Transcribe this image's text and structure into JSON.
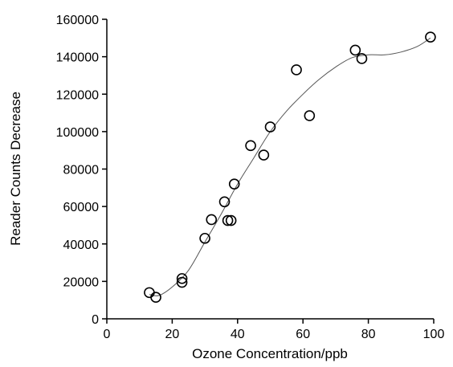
{
  "chart_data": {
    "type": "scatter",
    "title": "",
    "xlabel": "Ozone Concentration/ppb",
    "ylabel": "Reader Counts Decrease",
    "xlim": [
      0,
      100
    ],
    "ylim": [
      0,
      160000
    ],
    "xticks": [
      0,
      20,
      40,
      60,
      80,
      100
    ],
    "yticks": [
      0,
      20000,
      40000,
      60000,
      80000,
      100000,
      120000,
      140000,
      160000
    ],
    "grid": false,
    "legend": "none",
    "series": [
      {
        "points": [
          {
            "x": 13,
            "y": 14000
          },
          {
            "x": 15,
            "y": 11500
          },
          {
            "x": 23,
            "y": 19500
          },
          {
            "x": 23,
            "y": 21500
          },
          {
            "x": 30,
            "y": 43000
          },
          {
            "x": 32,
            "y": 53000
          },
          {
            "x": 36,
            "y": 62500
          },
          {
            "x": 37,
            "y": 52500
          },
          {
            "x": 38,
            "y": 52500
          },
          {
            "x": 39,
            "y": 72000
          },
          {
            "x": 44,
            "y": 92500
          },
          {
            "x": 48,
            "y": 87500
          },
          {
            "x": 50,
            "y": 102500
          },
          {
            "x": 58,
            "y": 133000
          },
          {
            "x": 62,
            "y": 108500
          },
          {
            "x": 76,
            "y": 143500
          },
          {
            "x": 78,
            "y": 139000
          },
          {
            "x": 99,
            "y": 150500
          }
        ]
      }
    ],
    "fit_curve": [
      {
        "x": 13,
        "y": 13000
      },
      {
        "x": 16,
        "y": 12500
      },
      {
        "x": 20,
        "y": 17000
      },
      {
        "x": 25,
        "y": 26000
      },
      {
        "x": 30,
        "y": 41000
      },
      {
        "x": 35,
        "y": 56000
      },
      {
        "x": 40,
        "y": 72000
      },
      {
        "x": 45,
        "y": 86000
      },
      {
        "x": 50,
        "y": 100000
      },
      {
        "x": 55,
        "y": 111000
      },
      {
        "x": 60,
        "y": 120000
      },
      {
        "x": 65,
        "y": 128000
      },
      {
        "x": 70,
        "y": 134500
      },
      {
        "x": 75,
        "y": 139500
      },
      {
        "x": 80,
        "y": 141000
      },
      {
        "x": 85,
        "y": 141000
      },
      {
        "x": 90,
        "y": 142500
      },
      {
        "x": 95,
        "y": 145500
      },
      {
        "x": 99,
        "y": 150000
      }
    ],
    "colors": {
      "points": "#000000",
      "curve": "#555555",
      "axis": "#000000"
    }
  }
}
